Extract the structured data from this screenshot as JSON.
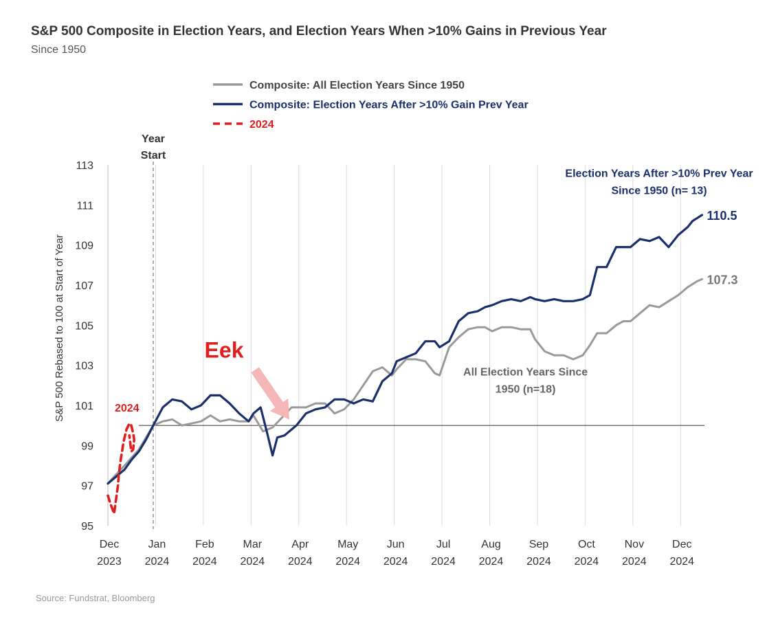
{
  "chart_data": {
    "type": "line",
    "title": "S&P 500 Composite in Election Years, and Election Years When >10% Gains in Previous Year",
    "subtitle": "Since 1950",
    "ylabel": "S&P 500 Rebased to 100 at Start of Year",
    "ylim": [
      95,
      113
    ],
    "yticks": [
      95,
      97,
      99,
      101,
      103,
      105,
      107,
      109,
      111,
      113
    ],
    "x_unit": "months from start of year",
    "xlim": [
      -0.95,
      11.55
    ],
    "xticks": [
      {
        "x": -0.95,
        "line1": "Dec",
        "line2": "2023"
      },
      {
        "x": 0.05,
        "line1": "Jan",
        "line2": "2024"
      },
      {
        "x": 1.05,
        "line1": "Feb",
        "line2": "2024"
      },
      {
        "x": 2.05,
        "line1": "Mar",
        "line2": "2024"
      },
      {
        "x": 3.05,
        "line1": "Apr",
        "line2": "2024"
      },
      {
        "x": 4.05,
        "line1": "May",
        "line2": "2024"
      },
      {
        "x": 5.05,
        "line1": "Jun",
        "line2": "2024"
      },
      {
        "x": 6.05,
        "line1": "Jul",
        "line2": "2024"
      },
      {
        "x": 7.05,
        "line1": "Aug",
        "line2": "2024"
      },
      {
        "x": 8.05,
        "line1": "Sep",
        "line2": "2024"
      },
      {
        "x": 9.05,
        "line1": "Oct",
        "line2": "2024"
      },
      {
        "x": 10.05,
        "line1": "Nov",
        "line2": "2024"
      },
      {
        "x": 11.05,
        "line1": "Dec",
        "line2": "2024"
      }
    ],
    "grid": "vertical",
    "baseline": 100,
    "year_start_x": 0,
    "year_start_label": [
      "Year",
      "Start"
    ],
    "legend": {
      "placement": "top-center",
      "entries": [
        {
          "label": "Composite: All Election Years Since 1950",
          "color": "#999999",
          "style": "solid"
        },
        {
          "label": "Composite: Election Years After >10% Gain Prev Year",
          "color": "#1b2f6b",
          "style": "solid"
        },
        {
          "label": "2024",
          "color": "#e01e1e",
          "style": "dashed"
        }
      ]
    },
    "series": [
      {
        "name": "Composite: All Election Years Since 1950",
        "color": "#999999",
        "style": "solid",
        "x": [
          -0.95,
          -0.8,
          -0.6,
          -0.45,
          -0.3,
          -0.15,
          0,
          0.2,
          0.4,
          0.6,
          0.8,
          1.0,
          1.2,
          1.4,
          1.6,
          1.8,
          2.0,
          2.1,
          2.3,
          2.5,
          2.7,
          2.9,
          3.0,
          3.2,
          3.4,
          3.6,
          3.8,
          4.0,
          4.2,
          4.4,
          4.6,
          4.8,
          5.0,
          5.1,
          5.3,
          5.5,
          5.7,
          5.9,
          6.0,
          6.2,
          6.4,
          6.6,
          6.8,
          6.95,
          7.1,
          7.3,
          7.5,
          7.7,
          7.9,
          8.0,
          8.2,
          8.4,
          8.6,
          8.8,
          9.0,
          9.15,
          9.3,
          9.5,
          9.7,
          9.85,
          10.0,
          10.2,
          10.4,
          10.6,
          10.8,
          11.0,
          11.2,
          11.4,
          11.5
        ],
        "y": [
          97.1,
          97.5,
          98.0,
          98.4,
          98.8,
          99.4,
          100.0,
          100.2,
          100.3,
          100.0,
          100.1,
          100.2,
          100.5,
          100.2,
          100.3,
          100.2,
          100.2,
          100.5,
          99.7,
          99.9,
          100.4,
          100.9,
          100.9,
          100.9,
          101.1,
          101.1,
          100.6,
          100.8,
          101.3,
          102.0,
          102.7,
          102.9,
          102.5,
          102.8,
          103.3,
          103.3,
          103.2,
          102.6,
          102.5,
          103.9,
          104.4,
          104.8,
          104.9,
          104.9,
          104.7,
          104.9,
          104.9,
          104.8,
          104.8,
          104.3,
          103.7,
          103.5,
          103.5,
          103.3,
          103.5,
          104.0,
          104.6,
          104.6,
          105.0,
          105.2,
          105.2,
          105.6,
          106.0,
          105.9,
          106.2,
          106.5,
          106.9,
          107.2,
          107.3
        ]
      },
      {
        "name": "Composite: Election Years After >10% Gain Prev Year",
        "color": "#1b2f6b",
        "style": "solid",
        "x": [
          -0.95,
          -0.8,
          -0.6,
          -0.45,
          -0.3,
          -0.15,
          0,
          0.2,
          0.4,
          0.6,
          0.8,
          1.0,
          1.2,
          1.4,
          1.6,
          1.8,
          2.0,
          2.1,
          2.25,
          2.4,
          2.5,
          2.6,
          2.75,
          2.9,
          3.0,
          3.2,
          3.4,
          3.6,
          3.8,
          4.0,
          4.2,
          4.4,
          4.6,
          4.8,
          5.0,
          5.1,
          5.3,
          5.5,
          5.7,
          5.9,
          6.0,
          6.2,
          6.4,
          6.6,
          6.8,
          6.95,
          7.1,
          7.3,
          7.5,
          7.7,
          7.9,
          8.0,
          8.2,
          8.4,
          8.6,
          8.8,
          9.0,
          9.15,
          9.3,
          9.5,
          9.7,
          9.85,
          10.0,
          10.2,
          10.4,
          10.6,
          10.8,
          11.0,
          11.2,
          11.3,
          11.5
        ],
        "y": [
          97.1,
          97.4,
          97.8,
          98.3,
          98.7,
          99.3,
          100.0,
          100.9,
          101.3,
          101.2,
          100.8,
          101.0,
          101.5,
          101.5,
          101.1,
          100.6,
          100.2,
          100.6,
          100.9,
          99.5,
          98.5,
          99.4,
          99.5,
          99.8,
          100.0,
          100.6,
          100.8,
          100.9,
          101.3,
          101.3,
          101.1,
          101.3,
          101.2,
          102.2,
          102.6,
          103.2,
          103.4,
          103.6,
          104.2,
          104.2,
          103.9,
          104.2,
          105.2,
          105.6,
          105.7,
          105.9,
          106.0,
          106.2,
          106.3,
          106.2,
          106.4,
          106.3,
          106.2,
          106.3,
          106.2,
          106.2,
          106.3,
          106.5,
          107.9,
          107.9,
          108.9,
          108.9,
          108.9,
          109.3,
          109.2,
          109.4,
          108.9,
          109.5,
          109.9,
          110.2,
          110.5
        ]
      },
      {
        "name": "2024",
        "color": "#e01e1e",
        "style": "dashed",
        "x": [
          -0.95,
          -0.9,
          -0.85,
          -0.82,
          -0.78,
          -0.74,
          -0.72,
          -0.68,
          -0.62,
          -0.56,
          -0.5,
          -0.46,
          -0.42,
          -0.4,
          -0.42,
          -0.46,
          -0.5
        ],
        "y": [
          96.5,
          96.1,
          95.8,
          95.6,
          96.3,
          97.0,
          97.6,
          98.3,
          99.2,
          99.8,
          100.1,
          100.0,
          99.6,
          99.3,
          98.8,
          98.7,
          99.5
        ]
      }
    ],
    "end_labels": [
      {
        "series": 1,
        "text": "110.5",
        "color": "#1b2f6b"
      },
      {
        "series": 0,
        "text": "107.3",
        "color": "#777777"
      }
    ],
    "annotations": [
      {
        "id": "after10",
        "lines": [
          "Election Years After >10% Prev Year",
          "Since 1950 (n= 13)"
        ],
        "color": "#1b2f6b",
        "x": 10.6,
        "y": 112.4
      },
      {
        "id": "allyears",
        "lines": [
          "All Election Years Since",
          "1950 (n=18)"
        ],
        "color": "#666666",
        "x": 7.8,
        "y": 102.5
      },
      {
        "id": "label2024",
        "lines": [
          "2024"
        ],
        "color": "#e01e1e",
        "x": -0.55,
        "y": 100.7
      },
      {
        "id": "eek",
        "lines": [
          "Eek"
        ],
        "color": "#e01e1e",
        "x": 1.7,
        "y": 103.8,
        "arrow_to": {
          "x": 2.85,
          "y": 100.3
        },
        "arrow_color": "#f4b6b6"
      }
    ]
  },
  "source": "Source: Fundstrat, Bloomberg"
}
